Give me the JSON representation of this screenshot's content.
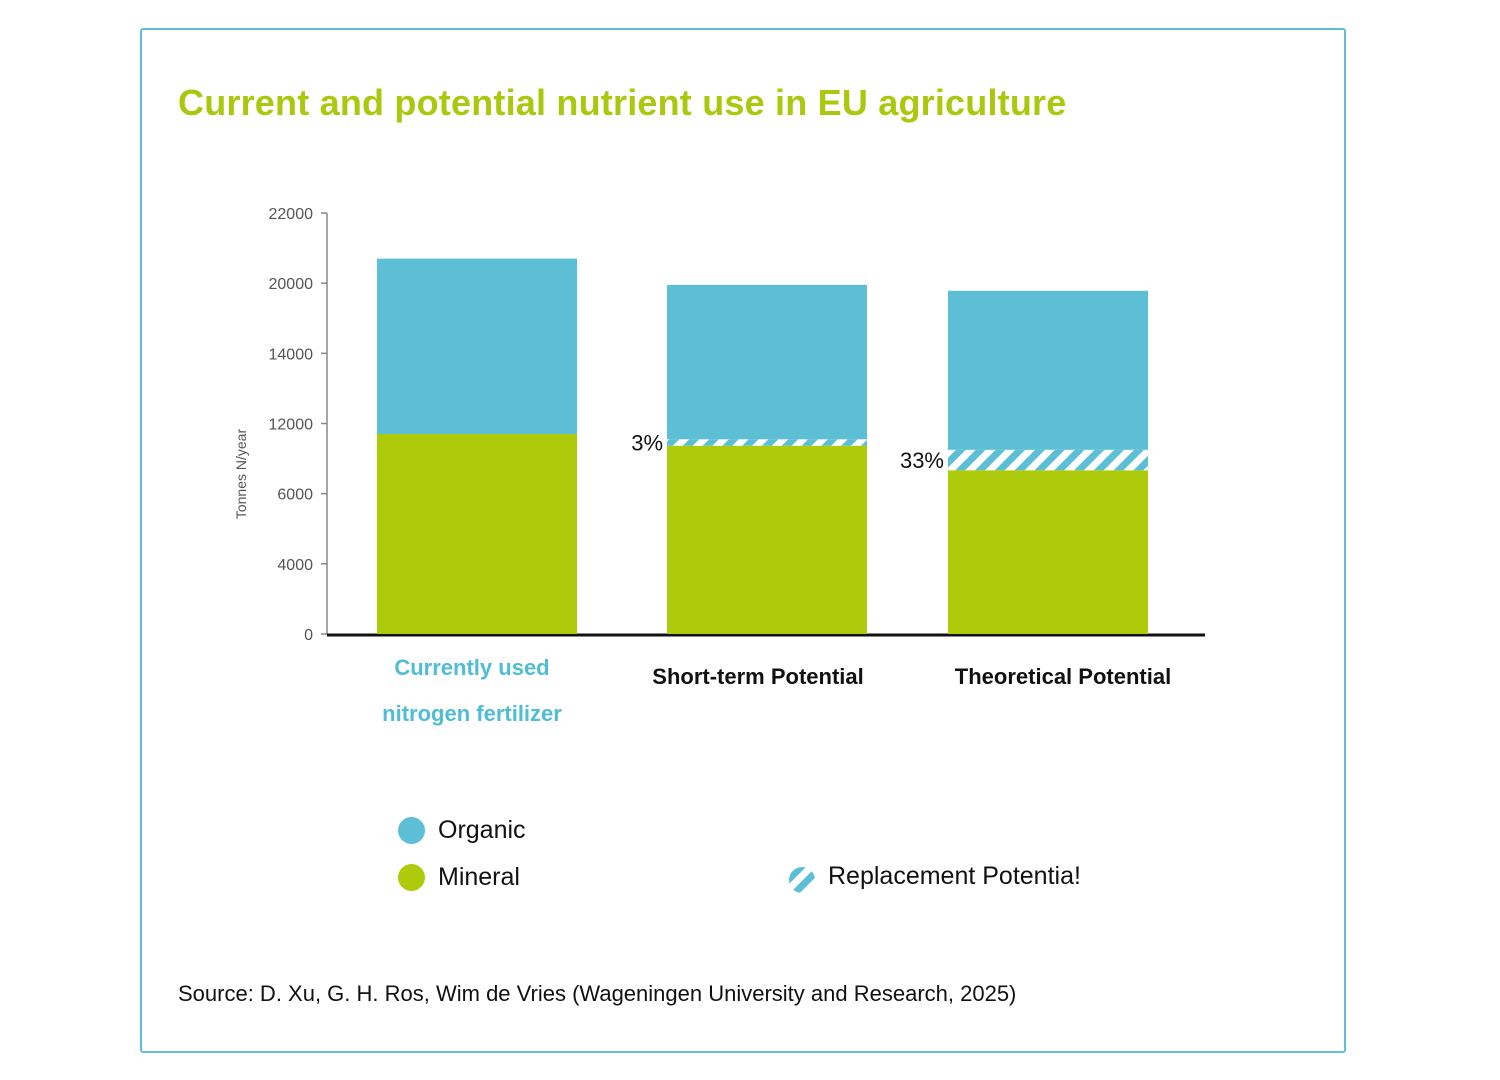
{
  "title": "Current and potential nutrient use in EU agriculture",
  "colors": {
    "organic": "#5cbfd6",
    "mineral": "#adcb0b",
    "title": "#a9c80e",
    "border": "#5fbfd6",
    "label_highlight": "#4fbdd3"
  },
  "chart_data": {
    "type": "bar",
    "stacked": true,
    "ylabel": "Tonnes N/year",
    "y_ticks": [
      "0",
      "4000",
      "6000",
      "12000",
      "14000",
      "20000",
      "22000"
    ],
    "categories": [
      "Currently used nitrogen fertilizer",
      "Short-term Potential",
      "Theoretical Potential"
    ],
    "series": [
      {
        "name": "Mineral",
        "values": [
          11100,
          10100,
          8000
        ]
      },
      {
        "name": "Replacement Potentia!",
        "values": [
          0,
          550,
          1750
        ]
      },
      {
        "name": "Organic",
        "values": [
          9600,
          9200,
          9600
        ]
      }
    ],
    "annotations": [
      {
        "category": "Short-term Potential",
        "text": "3%"
      },
      {
        "category": "Theoretical Potential",
        "text": "33%"
      }
    ],
    "legend": [
      {
        "label": "Organic",
        "marker": "dot",
        "color": "#5cbfd6"
      },
      {
        "label": "Mineral",
        "marker": "dot",
        "color": "#adcb0b"
      },
      {
        "label": "Replacement Potentia!",
        "marker": "hatch",
        "color": "#5cbfd6"
      }
    ]
  },
  "category_labels": {
    "first_line1": "Currently used",
    "first_line2": "nitrogen fertilizer",
    "second": "Short-term Potential",
    "third": "Theoretical Potential"
  },
  "source": "Source: D. Xu, G. H. Ros, Wim de Vries (Wageningen University and Research, 2025)"
}
